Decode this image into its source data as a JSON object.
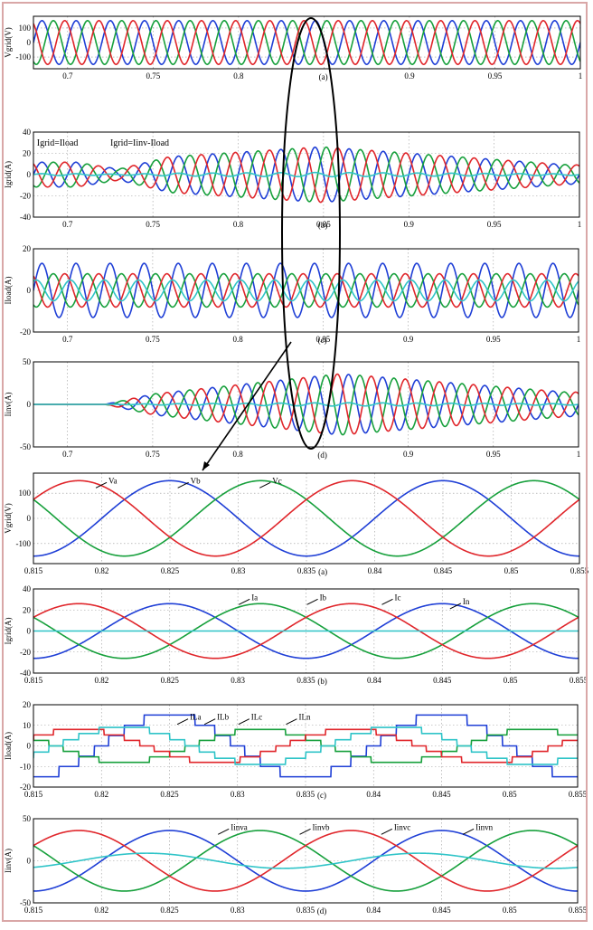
{
  "colors": {
    "a": "#1f3fd6",
    "b": "#17a03c",
    "c": "#e0262b",
    "n": "#2fc4c8",
    "black": "#000000"
  },
  "chart_data": [
    {
      "type": "line",
      "ylabel": "Vgrid(V)",
      "caption": "(a)",
      "xlim": [
        0.68,
        1.0
      ],
      "ylim": [
        -180,
        180
      ],
      "xticks": [
        "0.7",
        "0.75",
        "0.8",
        "",
        "0.9",
        "0.95",
        "1"
      ],
      "xtickvals": [
        0.7,
        0.75,
        0.8,
        0.85,
        0.9,
        0.95,
        1.0
      ],
      "yticks": [
        "100",
        "0",
        "-100"
      ],
      "ytickvals": [
        100,
        0,
        -100
      ],
      "series": [
        {
          "key": "a",
          "freq": 50,
          "phase": 0,
          "amp": 150
        },
        {
          "key": "b",
          "freq": 50,
          "phase": -120,
          "amp": 150
        },
        {
          "key": "c",
          "freq": 50,
          "phase": 120,
          "amp": 150
        }
      ]
    },
    {
      "type": "line",
      "ylabel": "Igrid(A)",
      "caption": "(b)",
      "xlim": [
        0.68,
        1.0
      ],
      "ylim": [
        -40,
        40
      ],
      "xticks": [
        "0.7",
        "0.75",
        "0.8",
        "0.85",
        "0.9",
        "0.95",
        "1"
      ],
      "xtickvals": [
        0.7,
        0.75,
        0.8,
        0.85,
        0.9,
        0.95,
        1.0
      ],
      "yticks": [
        "40",
        "20",
        "0",
        "-20",
        "-40"
      ],
      "ytickvals": [
        40,
        20,
        0,
        -20,
        -40
      ],
      "annotations": [
        {
          "text": "Igrid=Iload",
          "x": 0.682,
          "y": 30
        },
        {
          "text": "Igrid=Iinv-Iload",
          "x": 0.725,
          "y": 30
        }
      ],
      "series_profile": "grid",
      "series": [
        {
          "key": "a",
          "freq": 50,
          "phase": 0,
          "amp": 26
        },
        {
          "key": "b",
          "freq": 50,
          "phase": -120,
          "amp": 26
        },
        {
          "key": "c",
          "freq": 50,
          "phase": 120,
          "amp": 26
        },
        {
          "key": "n",
          "freq": 50,
          "phase": 0,
          "amp": 2
        }
      ]
    },
    {
      "type": "line",
      "ylabel": "Iload(A)",
      "caption": "(c)",
      "xlim": [
        0.68,
        1.0
      ],
      "ylim": [
        -20,
        20
      ],
      "xticks": [
        "0.7",
        "0.75",
        "0.8",
        "0.85",
        "0.9",
        "0.95",
        "1"
      ],
      "xtickvals": [
        0.7,
        0.75,
        0.8,
        0.85,
        0.9,
        0.95,
        1.0
      ],
      "yticks": [
        "20",
        "0",
        "-20"
      ],
      "ytickvals": [
        20,
        0,
        -20
      ],
      "series": [
        {
          "key": "a",
          "freq": 50,
          "phase": 0,
          "amp": 13
        },
        {
          "key": "b",
          "freq": 50,
          "phase": -120,
          "amp": 8
        },
        {
          "key": "c",
          "freq": 50,
          "phase": 120,
          "amp": 8
        },
        {
          "key": "n",
          "freq": 50,
          "phase": 60,
          "amp": 5
        }
      ]
    },
    {
      "type": "line",
      "ylabel": "Iinv(A)",
      "caption": "(d)",
      "xlim": [
        0.68,
        1.0
      ],
      "ylim": [
        -50,
        50
      ],
      "xticks": [
        "0.7",
        "0.75",
        "0.8",
        "",
        "0.9",
        "0.95",
        "1"
      ],
      "xtickvals": [
        0.7,
        0.75,
        0.8,
        0.85,
        0.9,
        0.95,
        1.0
      ],
      "yticks": [
        "50",
        "0",
        "-50"
      ],
      "ytickvals": [
        50,
        0,
        -50
      ],
      "series_profile": "inv",
      "series": [
        {
          "key": "a",
          "freq": 50,
          "phase": 0,
          "amp": 36
        },
        {
          "key": "b",
          "freq": 50,
          "phase": -120,
          "amp": 36
        },
        {
          "key": "c",
          "freq": 50,
          "phase": 120,
          "amp": 36
        },
        {
          "key": "n",
          "freq": 50,
          "phase": 0,
          "amp": 2
        }
      ]
    },
    {
      "type": "line",
      "ylabel": "Vgrid(V)",
      "caption": "(a)",
      "xlim": [
        0.815,
        0.855
      ],
      "ylim": [
        -180,
        180
      ],
      "xticks": [
        "0.815",
        "0.82",
        "0.825",
        "0.83",
        "0.835",
        "0.84",
        "0.845",
        "0.85",
        "0.855"
      ],
      "xtickvals": [
        0.815,
        0.82,
        0.825,
        0.83,
        0.835,
        0.84,
        0.845,
        0.85,
        0.855
      ],
      "yticks": [
        "100",
        "0",
        "-100"
      ],
      "ytickvals": [
        100,
        0,
        -100
      ],
      "labels": [
        {
          "text": "Va",
          "x": 0.8205,
          "y": 150
        },
        {
          "text": "Vb",
          "x": 0.8265,
          "y": 150
        },
        {
          "text": "Vc",
          "x": 0.8325,
          "y": 150
        }
      ],
      "series": [
        {
          "key": "a",
          "freq": 50,
          "phase": 0,
          "amp": 150
        },
        {
          "key": "b",
          "freq": 50,
          "phase": -120,
          "amp": 150
        },
        {
          "key": "c",
          "freq": 50,
          "phase": 120,
          "amp": 150
        }
      ]
    },
    {
      "type": "line",
      "ylabel": "Igrid(A)",
      "caption": "(b)",
      "xlim": [
        0.815,
        0.855
      ],
      "ylim": [
        -40,
        40
      ],
      "xticks": [
        "0.815",
        "0.82",
        "0.825",
        "0.83",
        "0.835",
        "0.84",
        "0.845",
        "0.85",
        "0.855"
      ],
      "xtickvals": [
        0.815,
        0.82,
        0.825,
        0.83,
        0.835,
        0.84,
        0.845,
        0.85,
        0.855
      ],
      "yticks": [
        "40",
        "20",
        "0",
        "-20",
        "-40"
      ],
      "ytickvals": [
        40,
        20,
        0,
        -20,
        -40
      ],
      "labels": [
        {
          "text": "Ia",
          "x": 0.831,
          "y": 32
        },
        {
          "text": "Ib",
          "x": 0.836,
          "y": 32
        },
        {
          "text": "Ic",
          "x": 0.8415,
          "y": 32
        },
        {
          "text": "In",
          "x": 0.8465,
          "y": 28
        }
      ],
      "series": [
        {
          "key": "a",
          "freq": 50,
          "phase": 0,
          "amp": 26
        },
        {
          "key": "b",
          "freq": 50,
          "phase": -120,
          "amp": 26
        },
        {
          "key": "c",
          "freq": 50,
          "phase": 120,
          "amp": 26
        },
        {
          "key": "n",
          "freq": 50,
          "phase": 0,
          "amp": 0
        }
      ]
    },
    {
      "type": "line",
      "ylabel": "Iload(A)",
      "caption": "(c)",
      "xlim": [
        0.815,
        0.855
      ],
      "ylim": [
        -20,
        20
      ],
      "xticks": [
        "0.815",
        "0.82",
        "0.825",
        "0.83",
        "0.835",
        "0.84",
        "0.845",
        "0.85",
        "0.855"
      ],
      "xtickvals": [
        0.815,
        0.82,
        0.825,
        0.83,
        0.835,
        0.84,
        0.845,
        0.85,
        0.855
      ],
      "yticks": [
        "20",
        "10",
        "0",
        "-10",
        "-20"
      ],
      "ytickvals": [
        20,
        10,
        0,
        -10,
        -20
      ],
      "labels": [
        {
          "text": "ILa",
          "x": 0.8265,
          "y": 14
        },
        {
          "text": "ILb",
          "x": 0.8285,
          "y": 14
        },
        {
          "text": "ILc",
          "x": 0.831,
          "y": 14
        },
        {
          "text": "ILn",
          "x": 0.8345,
          "y": 14
        }
      ],
      "series_profile": "stepped",
      "series": [
        {
          "key": "a",
          "freq": 50,
          "phase": 0,
          "amp": 15
        },
        {
          "key": "b",
          "freq": 50,
          "phase": -120,
          "amp": 8
        },
        {
          "key": "c",
          "freq": 50,
          "phase": 120,
          "amp": 8
        },
        {
          "key": "n",
          "freq": 50,
          "phase": 60,
          "amp": 9
        }
      ]
    },
    {
      "type": "line",
      "ylabel": "Iinv(A)",
      "caption": "(d)",
      "xlim": [
        0.815,
        0.855
      ],
      "ylim": [
        -50,
        50
      ],
      "xticks": [
        "0.815",
        "0.82",
        "0.825",
        "0.83",
        "0.835",
        "0.84",
        "0.845",
        "0.85",
        "0.855"
      ],
      "xtickvals": [
        0.815,
        0.82,
        0.825,
        0.83,
        0.835,
        0.84,
        0.845,
        0.85,
        0.855
      ],
      "yticks": [
        "50",
        "0",
        "-50"
      ],
      "ytickvals": [
        50,
        0,
        -50
      ],
      "labels": [
        {
          "text": "Iinva",
          "x": 0.8295,
          "y": 40
        },
        {
          "text": "Iinvb",
          "x": 0.8355,
          "y": 40
        },
        {
          "text": "Iinvc",
          "x": 0.8415,
          "y": 40
        },
        {
          "text": "Iinvn",
          "x": 0.8475,
          "y": 40
        }
      ],
      "series": [
        {
          "key": "a",
          "freq": 50,
          "phase": 0,
          "amp": 36
        },
        {
          "key": "b",
          "freq": 50,
          "phase": -120,
          "amp": 36
        },
        {
          "key": "c",
          "freq": 50,
          "phase": 120,
          "amp": 36
        },
        {
          "key": "n",
          "freq": 50,
          "phase": 30,
          "amp": 9
        }
      ]
    }
  ]
}
